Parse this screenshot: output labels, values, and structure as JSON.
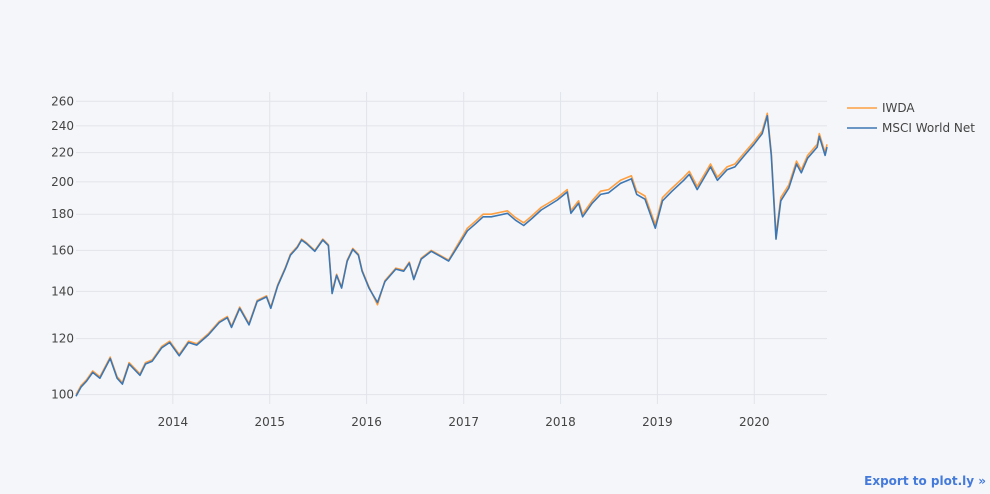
{
  "chart_data": {
    "type": "line",
    "title": "",
    "xlabel": "",
    "ylabel": "",
    "y_scale": "log",
    "ylim": [
      97,
      268
    ],
    "xlim": [
      "2013-01-01",
      "2020-10-01"
    ],
    "y_ticks": [
      100,
      120,
      140,
      160,
      180,
      200,
      220,
      240,
      260
    ],
    "x_ticks": [
      "2014",
      "2015",
      "2016",
      "2017",
      "2018",
      "2019",
      "2020"
    ],
    "grid": true,
    "legend_position": "right",
    "series": [
      {
        "name": "IWDA",
        "color": "#ff9f40",
        "points": [
          [
            "2013-01-01",
            100
          ],
          [
            "2013-01-20",
            103
          ],
          [
            "2013-02-10",
            105
          ],
          [
            "2013-03-05",
            108
          ],
          [
            "2013-04-01",
            106
          ],
          [
            "2013-05-10",
            113
          ],
          [
            "2013-06-05",
            106
          ],
          [
            "2013-06-25",
            104
          ],
          [
            "2013-07-20",
            111
          ],
          [
            "2013-08-30",
            107
          ],
          [
            "2013-09-20",
            111
          ],
          [
            "2013-10-15",
            112
          ],
          [
            "2013-11-20",
            117
          ],
          [
            "2013-12-20",
            119
          ],
          [
            "2014-01-25",
            114
          ],
          [
            "2014-03-01",
            119
          ],
          [
            "2014-04-01",
            118
          ],
          [
            "2014-05-15",
            122
          ],
          [
            "2014-06-25",
            127
          ],
          [
            "2014-07-25",
            129
          ],
          [
            "2014-08-10",
            125
          ],
          [
            "2014-09-10",
            133
          ],
          [
            "2014-10-15",
            126
          ],
          [
            "2014-11-15",
            136
          ],
          [
            "2014-12-20",
            138
          ],
          [
            "2015-01-05",
            133
          ],
          [
            "2015-01-31",
            143
          ],
          [
            "2015-02-28",
            151
          ],
          [
            "2015-03-20",
            158
          ],
          [
            "2015-04-15",
            162
          ],
          [
            "2015-05-01",
            166
          ],
          [
            "2015-05-20",
            164
          ],
          [
            "2015-06-20",
            160
          ],
          [
            "2015-07-20",
            166
          ],
          [
            "2015-08-10",
            163
          ],
          [
            "2015-08-24",
            140
          ],
          [
            "2015-09-10",
            148
          ],
          [
            "2015-09-29",
            142
          ],
          [
            "2015-10-20",
            155
          ],
          [
            "2015-11-10",
            161
          ],
          [
            "2015-12-01",
            158
          ],
          [
            "2015-12-15",
            150
          ],
          [
            "2016-01-10",
            142
          ],
          [
            "2016-02-11",
            134
          ],
          [
            "2016-03-10",
            145
          ],
          [
            "2016-04-20",
            151
          ],
          [
            "2016-05-20",
            150
          ],
          [
            "2016-06-10",
            154
          ],
          [
            "2016-06-27",
            146
          ],
          [
            "2016-07-25",
            156
          ],
          [
            "2016-09-01",
            160
          ],
          [
            "2016-10-10",
            157
          ],
          [
            "2016-11-05",
            155
          ],
          [
            "2016-12-05",
            162
          ],
          [
            "2017-01-15",
            172
          ],
          [
            "2017-02-15",
            176
          ],
          [
            "2017-03-15",
            180
          ],
          [
            "2017-04-15",
            180
          ],
          [
            "2017-05-15",
            181
          ],
          [
            "2017-06-15",
            182
          ],
          [
            "2017-07-15",
            178
          ],
          [
            "2017-08-15",
            175
          ],
          [
            "2017-09-15",
            179
          ],
          [
            "2017-10-20",
            184
          ],
          [
            "2017-11-20",
            187
          ],
          [
            "2017-12-20",
            190
          ],
          [
            "2018-01-26",
            195
          ],
          [
            "2018-02-09",
            182
          ],
          [
            "2018-03-10",
            188
          ],
          [
            "2018-03-25",
            180
          ],
          [
            "2018-04-30",
            188
          ],
          [
            "2018-06-01",
            194
          ],
          [
            "2018-07-01",
            195
          ],
          [
            "2018-08-15",
            201
          ],
          [
            "2018-09-25",
            204
          ],
          [
            "2018-10-15",
            194
          ],
          [
            "2018-11-15",
            191
          ],
          [
            "2018-12-24",
            174
          ],
          [
            "2019-01-20",
            190
          ],
          [
            "2019-02-25",
            196
          ],
          [
            "2019-04-10",
            203
          ],
          [
            "2019-05-01",
            207
          ],
          [
            "2019-05-31",
            197
          ],
          [
            "2019-07-20",
            212
          ],
          [
            "2019-08-15",
            203
          ],
          [
            "2019-09-20",
            210
          ],
          [
            "2019-10-20",
            212
          ],
          [
            "2019-11-25",
            220
          ],
          [
            "2019-12-31",
            228
          ],
          [
            "2020-01-31",
            236
          ],
          [
            "2020-02-19",
            250
          ],
          [
            "2020-03-05",
            220
          ],
          [
            "2020-03-23",
            168
          ],
          [
            "2020-04-10",
            190
          ],
          [
            "2020-05-10",
            198
          ],
          [
            "2020-06-08",
            214
          ],
          [
            "2020-06-26",
            208
          ],
          [
            "2020-07-20",
            218
          ],
          [
            "2020-08-25",
            226
          ],
          [
            "2020-09-02",
            234
          ],
          [
            "2020-09-24",
            220
          ],
          [
            "2020-10-01",
            226
          ]
        ]
      },
      {
        "name": "MSCI World Net",
        "color": "#3c77b4",
        "points": [
          [
            "2013-01-01",
            99.5
          ],
          [
            "2013-01-20",
            102.5
          ],
          [
            "2013-02-10",
            104.5
          ],
          [
            "2013-03-05",
            107.5
          ],
          [
            "2013-04-01",
            105.5
          ],
          [
            "2013-05-10",
            112.5
          ],
          [
            "2013-06-05",
            105.5
          ],
          [
            "2013-06-25",
            103.5
          ],
          [
            "2013-07-20",
            110.5
          ],
          [
            "2013-08-30",
            106.5
          ],
          [
            "2013-09-20",
            110.5
          ],
          [
            "2013-10-15",
            111.5
          ],
          [
            "2013-11-20",
            116.5
          ],
          [
            "2013-12-20",
            118.5
          ],
          [
            "2014-01-25",
            113.5
          ],
          [
            "2014-03-01",
            118.5
          ],
          [
            "2014-04-01",
            117.5
          ],
          [
            "2014-05-15",
            121.5
          ],
          [
            "2014-06-25",
            126.5
          ],
          [
            "2014-07-25",
            128.5
          ],
          [
            "2014-08-10",
            124.5
          ],
          [
            "2014-09-10",
            132.5
          ],
          [
            "2014-10-15",
            125.5
          ],
          [
            "2014-11-15",
            135.5
          ],
          [
            "2014-12-20",
            137.5
          ],
          [
            "2015-01-05",
            132.5
          ],
          [
            "2015-01-31",
            142.5
          ],
          [
            "2015-02-28",
            150.5
          ],
          [
            "2015-03-20",
            157.5
          ],
          [
            "2015-04-15",
            161.5
          ],
          [
            "2015-05-01",
            165.5
          ],
          [
            "2015-05-20",
            163.5
          ],
          [
            "2015-06-20",
            159.5
          ],
          [
            "2015-07-20",
            165.5
          ],
          [
            "2015-08-10",
            162.5
          ],
          [
            "2015-08-24",
            139
          ],
          [
            "2015-09-10",
            147.5
          ],
          [
            "2015-09-29",
            141.5
          ],
          [
            "2015-10-20",
            154.5
          ],
          [
            "2015-11-10",
            160.5
          ],
          [
            "2015-12-01",
            157.5
          ],
          [
            "2015-12-15",
            149.5
          ],
          [
            "2016-01-10",
            141.5
          ],
          [
            "2016-02-11",
            135
          ],
          [
            "2016-03-10",
            144.5
          ],
          [
            "2016-04-20",
            150.5
          ],
          [
            "2016-05-20",
            149.5
          ],
          [
            "2016-06-10",
            153.5
          ],
          [
            "2016-06-27",
            145.5
          ],
          [
            "2016-07-25",
            155.5
          ],
          [
            "2016-09-01",
            159.5
          ],
          [
            "2016-10-10",
            156.5
          ],
          [
            "2016-11-05",
            154.5
          ],
          [
            "2016-12-05",
            161
          ],
          [
            "2017-01-15",
            170.5
          ],
          [
            "2017-02-15",
            174.5
          ],
          [
            "2017-03-15",
            178.5
          ],
          [
            "2017-04-15",
            178.5
          ],
          [
            "2017-05-15",
            179.5
          ],
          [
            "2017-06-15",
            180.5
          ],
          [
            "2017-07-15",
            176.5
          ],
          [
            "2017-08-15",
            173.5
          ],
          [
            "2017-09-15",
            177.5
          ],
          [
            "2017-10-20",
            182.5
          ],
          [
            "2017-11-20",
            185.5
          ],
          [
            "2017-12-20",
            188.5
          ],
          [
            "2018-01-26",
            193.5
          ],
          [
            "2018-02-09",
            180.5
          ],
          [
            "2018-03-10",
            186.5
          ],
          [
            "2018-03-25",
            178.5
          ],
          [
            "2018-04-30",
            186.5
          ],
          [
            "2018-06-01",
            192
          ],
          [
            "2018-07-01",
            193
          ],
          [
            "2018-08-15",
            199
          ],
          [
            "2018-09-25",
            202
          ],
          [
            "2018-10-15",
            192
          ],
          [
            "2018-11-15",
            189
          ],
          [
            "2018-12-24",
            172
          ],
          [
            "2019-01-20",
            188
          ],
          [
            "2019-02-25",
            194
          ],
          [
            "2019-04-10",
            201
          ],
          [
            "2019-05-01",
            205
          ],
          [
            "2019-05-31",
            195
          ],
          [
            "2019-07-20",
            210
          ],
          [
            "2019-08-15",
            201
          ],
          [
            "2019-09-20",
            208
          ],
          [
            "2019-10-20",
            210
          ],
          [
            "2019-11-25",
            218
          ],
          [
            "2019-12-31",
            226
          ],
          [
            "2020-01-31",
            234
          ],
          [
            "2020-02-19",
            248
          ],
          [
            "2020-03-05",
            218
          ],
          [
            "2020-03-23",
            166
          ],
          [
            "2020-04-10",
            188
          ],
          [
            "2020-05-10",
            196
          ],
          [
            "2020-06-08",
            212
          ],
          [
            "2020-06-26",
            206
          ],
          [
            "2020-07-20",
            216
          ],
          [
            "2020-08-25",
            224
          ],
          [
            "2020-09-02",
            232
          ],
          [
            "2020-09-24",
            218
          ],
          [
            "2020-10-01",
            224
          ]
        ]
      }
    ]
  },
  "ui": {
    "export_link": "Export to plot.ly »",
    "grid_color": "#e1e4ea",
    "background": "#f5f6f9"
  }
}
